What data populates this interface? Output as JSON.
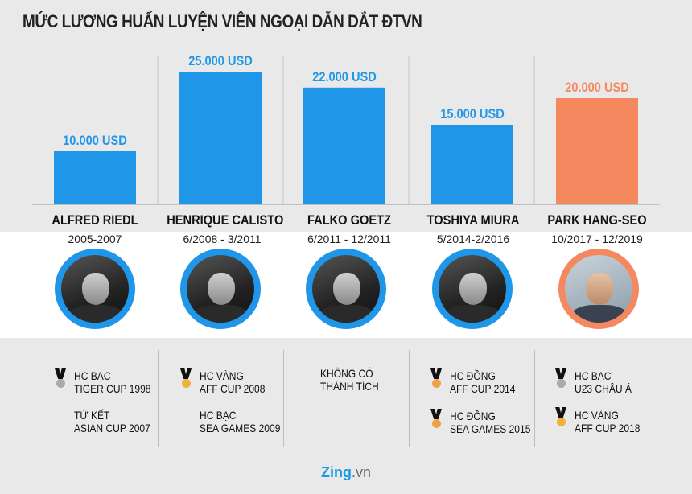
{
  "title": "MỨC LƯƠNG HUẤN LUYỆN VIÊN NGOẠI DẪN DẮT ĐTVN",
  "chart_data": {
    "type": "bar",
    "title": "MỨC LƯƠNG HUẤN LUYỆN VIÊN NGOẠI DẪN DẮT ĐTVN",
    "categories": [
      "ALFRED RIEDL",
      "HENRIQUE CALISTO",
      "FALKO GOETZ",
      "TOSHIYA MIURA",
      "PARK HANG-SEO"
    ],
    "values": [
      10000,
      25000,
      22000,
      15000,
      20000
    ],
    "labels": [
      "10.000 USD",
      "25.000 USD",
      "22.000 USD",
      "15.000 USD",
      "20.000 USD"
    ],
    "colors": [
      "#1f96e8",
      "#1f96e8",
      "#1f96e8",
      "#1f96e8",
      "#f4895f"
    ],
    "ylim": [
      0,
      25000
    ]
  },
  "coaches": [
    {
      "name": "ALFRED RIEDL",
      "period": "2005-2007"
    },
    {
      "name": "HENRIQUE CALISTO",
      "period": "6/2008 - 3/2011"
    },
    {
      "name": "FALKO GOETZ",
      "period": "6/2011 - 12/2011"
    },
    {
      "name": "TOSHIYA MIURA",
      "period": "5/2014-2/2016"
    },
    {
      "name": "PARK HANG-SEO",
      "period": "10/2017 - 12/2019"
    }
  ],
  "achievements": {
    "riedl": {
      "a1": "HC BẠC\nTIGER CUP 1998",
      "a2": "TỨ KẾT\nASIAN CUP 2007"
    },
    "calisto": {
      "a1": "HC VÀNG\nAFF CUP 2008",
      "a2": "HC BẠC\nSEA GAMES 2009"
    },
    "goetz": {
      "a1": "KHÔNG CÓ\nTHÀNH TÍCH"
    },
    "miura": {
      "a1": "HC ĐỒNG\nAFF CUP 2014",
      "a2": "HC ĐỒNG\nSEA GAMES 2015"
    },
    "park": {
      "a1": "HC BẠC\nU23 CHÂU Á",
      "a2": "HC VÀNG\nAFF CUP 2018"
    }
  },
  "logo": {
    "brand": "Zing",
    "suffix": ".vn"
  }
}
